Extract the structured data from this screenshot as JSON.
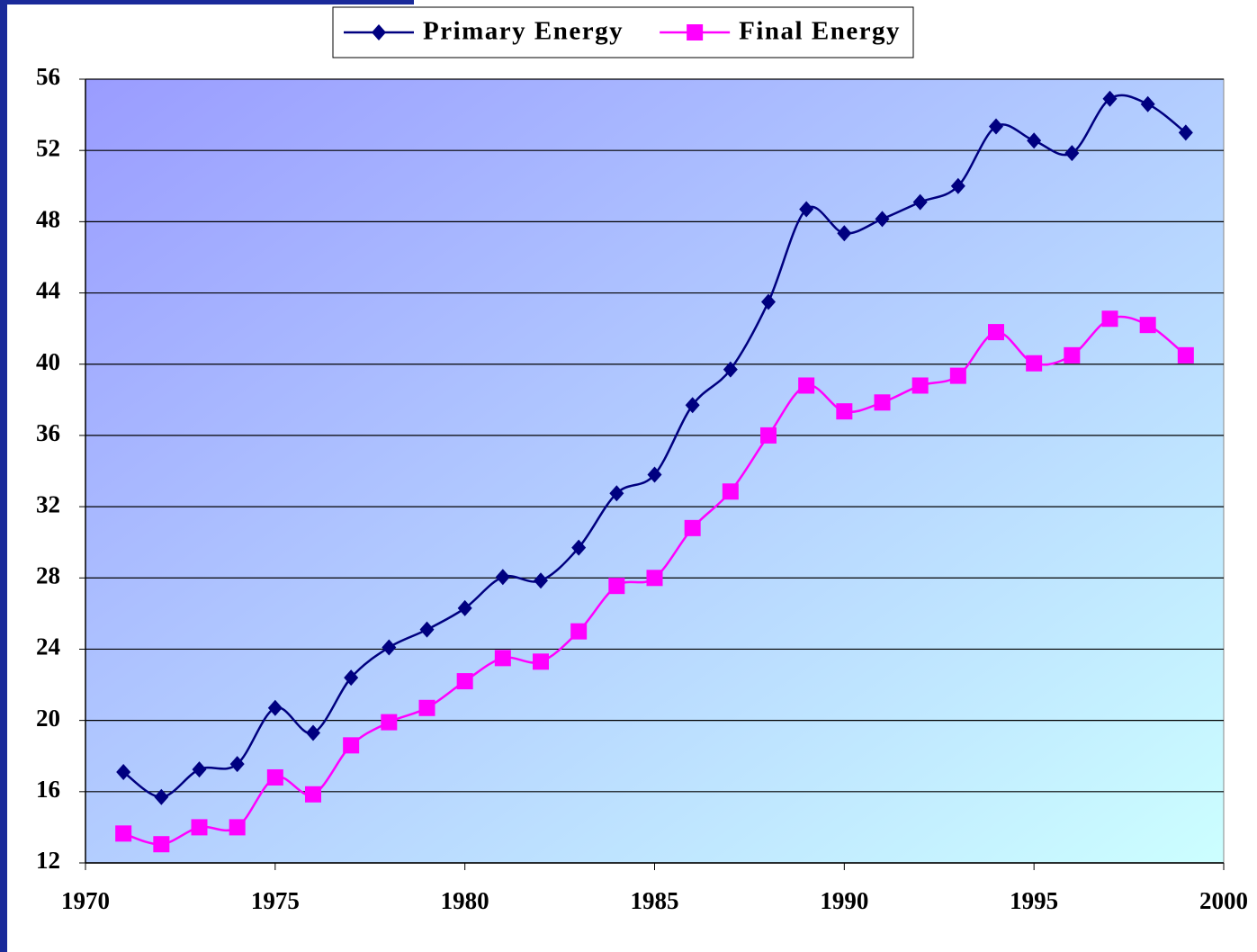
{
  "chart_data": {
    "type": "line",
    "x": [
      1971,
      1972,
      1973,
      1974,
      1975,
      1976,
      1977,
      1978,
      1979,
      1980,
      1981,
      1982,
      1983,
      1984,
      1985,
      1986,
      1987,
      1988,
      1989,
      1990,
      1991,
      1992,
      1993,
      1994,
      1995,
      1996,
      1997,
      1998,
      1999
    ],
    "series": [
      {
        "name": "Primary Energy",
        "color": "#000080",
        "marker": "diamond",
        "values": [
          17.1,
          15.7,
          17.25,
          17.55,
          20.7,
          19.3,
          22.4,
          24.1,
          25.1,
          26.3,
          28.05,
          27.85,
          29.7,
          32.75,
          33.8,
          37.7,
          39.7,
          43.5,
          48.7,
          47.35,
          48.15,
          49.1,
          50.0,
          53.35,
          52.55,
          51.85,
          54.9,
          54.6,
          53.0
        ]
      },
      {
        "name": "Final Energy",
        "color": "#ff00ff",
        "marker": "square",
        "values": [
          13.65,
          13.05,
          14.0,
          14.0,
          16.8,
          15.85,
          18.6,
          19.9,
          20.7,
          22.2,
          23.5,
          23.3,
          25.0,
          27.55,
          28.0,
          30.8,
          32.85,
          36.0,
          38.8,
          37.35,
          37.85,
          38.8,
          39.35,
          41.8,
          40.05,
          40.5,
          42.55,
          42.2,
          40.5
        ]
      }
    ],
    "xlim": [
      1970,
      2000
    ],
    "xticks": [
      1970,
      1975,
      1980,
      1985,
      1990,
      1995,
      2000
    ],
    "ylim": [
      12,
      56
    ],
    "yticks": [
      12,
      16,
      20,
      24,
      28,
      32,
      36,
      40,
      44,
      48,
      52,
      56
    ],
    "grid": true,
    "legend": "top",
    "smooth": true
  }
}
